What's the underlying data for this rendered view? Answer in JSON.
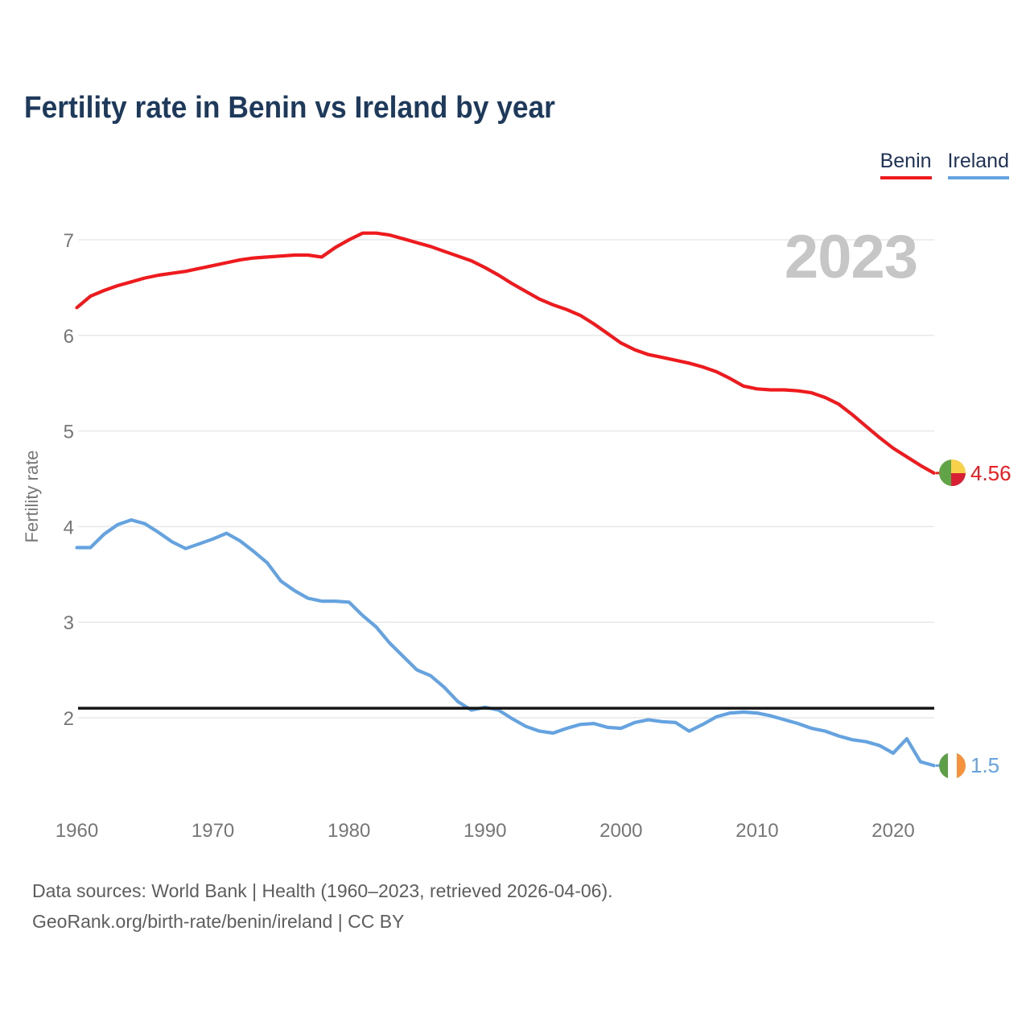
{
  "title": "Fertility rate in Benin vs Ireland by year",
  "watermark_year": "2023",
  "legend": {
    "items": [
      {
        "label": "Benin",
        "color": "#ee1a1d"
      },
      {
        "label": "Ireland",
        "color": "#64a3e0"
      }
    ]
  },
  "y_axis": {
    "label": "Fertility rate",
    "ticks": [
      7,
      6,
      5,
      4,
      3,
      2
    ]
  },
  "x_axis": {
    "ticks": [
      1960,
      1970,
      1980,
      1990,
      2000,
      2010,
      2020
    ]
  },
  "end_labels": {
    "benin": {
      "value": "4.56",
      "color": "#ee1a1d",
      "flag": "benin-flag"
    },
    "ireland": {
      "value": "1.5",
      "color": "#64a3e0",
      "flag": "ireland-flag"
    }
  },
  "footer": {
    "line1": "Data sources: World Bank | Health (1960–2023, retrieved 2026-04-06).",
    "line2": "GeoRank.org/birth-rate/benin/ireland | CC BY"
  },
  "colors": {
    "title": "#1d3a5c",
    "benin_line": "#ee1a1d",
    "ireland_line": "#64a3e0",
    "reference_line": "#141414",
    "gridline": "#e8e8e8",
    "tick_text": "#767676",
    "watermark": "#c6c6c6",
    "benin_flag": {
      "green": "#61a447",
      "yellow": "#f8d14b",
      "red": "#d81f33"
    },
    "ireland_flag": {
      "green": "#5d9f47",
      "white": "#ffffff",
      "orange": "#f6913c"
    }
  },
  "chart_data": {
    "type": "line",
    "title": "Fertility rate in Benin vs Ireland by year",
    "xlabel": "",
    "ylabel": "Fertility rate",
    "xlim": [
      1960,
      2023
    ],
    "ylim": [
      1.4,
      7.25
    ],
    "y_ticks": [
      7,
      6,
      5,
      4,
      3,
      2
    ],
    "x_ticks": [
      1960,
      1970,
      1980,
      1990,
      2000,
      2010,
      2020
    ],
    "grid": "horizontal",
    "legend_position": "top-right",
    "reference_line": 2.1,
    "x": [
      1960,
      1961,
      1962,
      1963,
      1964,
      1965,
      1966,
      1967,
      1968,
      1969,
      1970,
      1971,
      1972,
      1973,
      1974,
      1975,
      1976,
      1977,
      1978,
      1979,
      1980,
      1981,
      1982,
      1983,
      1984,
      1985,
      1986,
      1987,
      1988,
      1989,
      1990,
      1991,
      1992,
      1993,
      1994,
      1995,
      1996,
      1997,
      1998,
      1999,
      2000,
      2001,
      2002,
      2003,
      2004,
      2005,
      2006,
      2007,
      2008,
      2009,
      2010,
      2011,
      2012,
      2013,
      2014,
      2015,
      2016,
      2017,
      2018,
      2019,
      2020,
      2021,
      2022,
      2023
    ],
    "series": [
      {
        "name": "Benin",
        "color": "#ee1a1d",
        "values": [
          6.29,
          6.41,
          6.47,
          6.52,
          6.56,
          6.6,
          6.63,
          6.65,
          6.67,
          6.7,
          6.73,
          6.76,
          6.79,
          6.81,
          6.82,
          6.83,
          6.84,
          6.84,
          6.82,
          6.92,
          7.0,
          7.07,
          7.07,
          7.05,
          7.01,
          6.97,
          6.93,
          6.88,
          6.83,
          6.78,
          6.71,
          6.63,
          6.54,
          6.46,
          6.38,
          6.32,
          6.27,
          6.21,
          6.12,
          6.02,
          5.92,
          5.85,
          5.8,
          5.77,
          5.74,
          5.71,
          5.67,
          5.62,
          5.55,
          5.47,
          5.44,
          5.43,
          5.43,
          5.42,
          5.4,
          5.35,
          5.28,
          5.17,
          5.05,
          4.93,
          4.82,
          4.73,
          4.64,
          4.56
        ]
      },
      {
        "name": "Ireland",
        "color": "#64a3e0",
        "values": [
          3.78,
          3.78,
          3.92,
          4.02,
          4.07,
          4.03,
          3.94,
          3.84,
          3.77,
          3.82,
          3.87,
          3.93,
          3.85,
          3.74,
          3.62,
          3.43,
          3.33,
          3.25,
          3.22,
          3.22,
          3.21,
          3.07,
          2.95,
          2.78,
          2.64,
          2.5,
          2.44,
          2.32,
          2.17,
          2.08,
          2.11,
          2.08,
          1.99,
          1.91,
          1.86,
          1.84,
          1.89,
          1.93,
          1.94,
          1.9,
          1.89,
          1.95,
          1.98,
          1.96,
          1.95,
          1.86,
          1.93,
          2.01,
          2.05,
          2.06,
          2.05,
          2.02,
          1.98,
          1.94,
          1.89,
          1.86,
          1.81,
          1.77,
          1.75,
          1.71,
          1.63,
          1.78,
          1.54,
          1.5
        ]
      }
    ]
  }
}
